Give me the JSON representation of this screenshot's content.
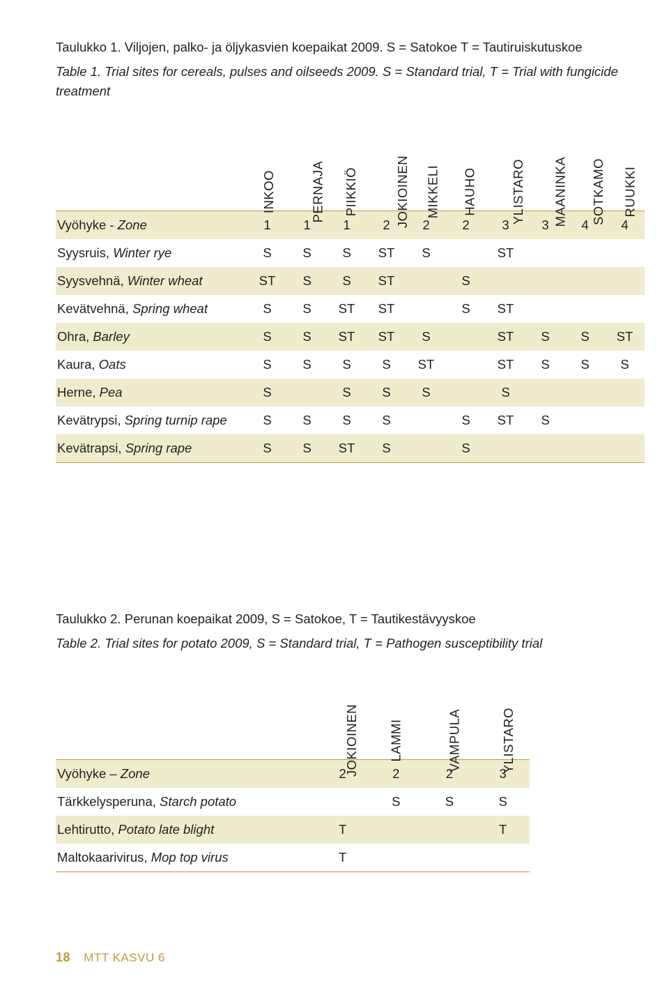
{
  "colors": {
    "accent": "#C19A3F",
    "shade": "#eeeccd",
    "text": "#231f20",
    "background": "#ffffff"
  },
  "table1": {
    "caption_fi": "Taulukko 1. Viljojen, palko- ja öljykasvien koepaikat 2009. S = Satokoe T = Tautiruiskutuskoe",
    "caption_en": "Table 1. Trial sites for cereals, pulses and oilseeds 2009. S = Standard trial, T = Trial with fungicide treatment",
    "columns": [
      "INKOO",
      "PERNAJA",
      "PIIKKIÖ",
      "JOKIOINEN",
      "MIKKELI",
      "HAUHO",
      "YLISTARO",
      "MAANINKA",
      "SOTKAMO",
      "RUUKKI"
    ],
    "rows": [
      {
        "fi": "Vyöhyke - ",
        "en": "Zone",
        "cells": [
          "1",
          "1",
          "1",
          "2",
          "2",
          "2",
          "3",
          "3",
          "4",
          "4"
        ]
      },
      {
        "fi": "Syysruis,  ",
        "en": "Winter rye",
        "cells": [
          "S",
          "S",
          "S",
          "ST",
          "S",
          "",
          "ST",
          "",
          "",
          ""
        ]
      },
      {
        "fi": "Syysvehnä, ",
        "en": "Winter wheat",
        "cells": [
          "ST",
          "S",
          "S",
          "ST",
          "",
          "S",
          "",
          "",
          "",
          ""
        ]
      },
      {
        "fi": "Kevätvehnä, ",
        "en": "Spring wheat",
        "cells": [
          "S",
          "S",
          "ST",
          "ST",
          "",
          "S",
          "ST",
          "",
          "",
          ""
        ]
      },
      {
        "fi": "Ohra, ",
        "en": "Barley",
        "cells": [
          "S",
          "S",
          "ST",
          "ST",
          "S",
          "",
          "ST",
          "S",
          "S",
          "ST"
        ]
      },
      {
        "fi": "Kaura, ",
        "en": "Oats",
        "cells": [
          "S",
          "S",
          "S",
          "S",
          "ST",
          "",
          "ST",
          "S",
          "S",
          "S"
        ]
      },
      {
        "fi": "Herne, ",
        "en": "Pea",
        "cells": [
          "S",
          "",
          "S",
          "S",
          "S",
          "",
          "S",
          "",
          "",
          ""
        ]
      },
      {
        "fi": "Kevätrypsi, ",
        "en": "Spring turnip rape",
        "cells": [
          "S",
          "S",
          "S",
          "S",
          "",
          "S",
          "ST",
          "S",
          "",
          ""
        ]
      },
      {
        "fi": "Kevätrapsi, ",
        "en": "Spring rape",
        "cells": [
          "S",
          "S",
          "ST",
          "S",
          "",
          "S",
          "",
          "",
          "",
          ""
        ]
      }
    ]
  },
  "table2": {
    "caption_fi": "Taulukko 2. Perunan koepaikat 2009, S = Satokoe, T = Tautikestävyyskoe",
    "caption_en": "Table 2. Trial sites for potato 2009, S = Standard trial, T = Pathogen susceptibility trial",
    "columns": [
      "JOKIOINEN",
      "LAMMI",
      "VAMPULA",
      "YLISTARO"
    ],
    "rows": [
      {
        "fi": "Vyöhyke – ",
        "en": "Zone",
        "cells": [
          "2",
          "2",
          "2",
          "3"
        ]
      },
      {
        "fi": "Tärkkelysperuna, ",
        "en": "Starch potato",
        "cells": [
          "",
          "S",
          "S",
          "S"
        ]
      },
      {
        "fi": "Lehtirutto, ",
        "en": "Potato late blight",
        "cells": [
          "T",
          "",
          "",
          "T"
        ]
      },
      {
        "fi": "Maltokaarivirus, ",
        "en": "Mop top virus",
        "cells": [
          "T",
          "",
          "",
          ""
        ]
      }
    ]
  },
  "footer": {
    "page": "18",
    "pub": "MTT KASVU 6"
  }
}
